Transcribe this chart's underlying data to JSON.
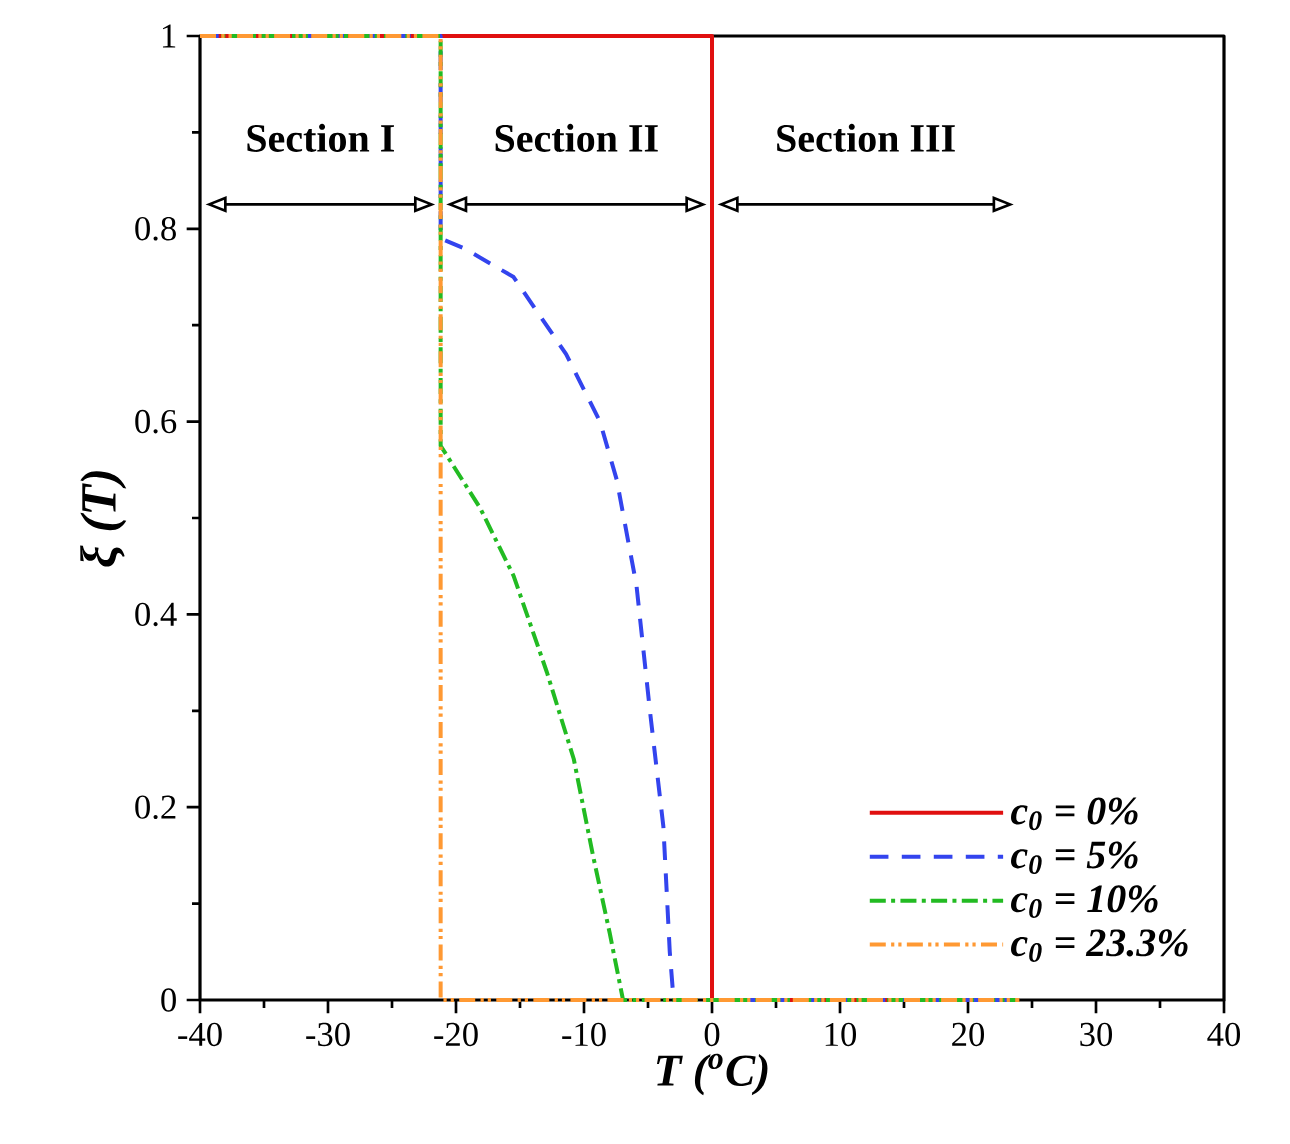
{
  "chart_data": {
    "type": "line",
    "xlabel": "T ($^{o}$C)",
    "ylabel": "ξ (T)",
    "xlim": [
      -40,
      40
    ],
    "ylim": [
      0,
      1
    ],
    "xticks": [
      -40,
      -30,
      -20,
      -10,
      0,
      10,
      20,
      30,
      40
    ],
    "yticks": [
      0,
      0.2,
      0.4,
      0.6,
      0.8,
      1
    ],
    "legend": "bottom right",
    "grid": false,
    "marker": "none",
    "series": [
      {
        "name": "c$_{0}$ = 0%",
        "color": "#e01010",
        "line_style": "solid",
        "x": [
          -40,
          0,
          0,
          24
        ],
        "values": [
          1,
          1,
          0,
          0
        ]
      },
      {
        "name": "c$_{0}$ = 5%",
        "color": "#3344ee",
        "line_style": "dashed",
        "x": [
          -40,
          -21.2,
          -21.2,
          -19.4,
          -15.5,
          -11.4,
          -8.75,
          -7.45,
          -5.9,
          -4.85,
          -3.8,
          -3.3,
          -3.0,
          24
        ],
        "values": [
          1,
          1,
          0.79,
          0.78,
          0.75,
          0.67,
          0.6,
          0.54,
          0.43,
          0.3,
          0.18,
          0.05,
          0,
          0
        ]
      },
      {
        "name": "c$_{0}$ = 10%",
        "color": "#22bb22",
        "line_style": "dashdot",
        "x": [
          -40,
          -21.2,
          -21.2,
          -18.1,
          -15.5,
          -12.9,
          -10.8,
          -9.3,
          -8.0,
          -6.95,
          24
        ],
        "values": [
          1,
          1,
          0.575,
          0.51,
          0.44,
          0.34,
          0.25,
          0.15,
          0.07,
          0,
          0
        ]
      },
      {
        "name": "c$_{0}$ = 23.3%",
        "color": "#ff9933",
        "line_style": "dashdotdot",
        "x": [
          -40,
          -21.2,
          -21.2,
          24
        ],
        "values": [
          1,
          1,
          0,
          0
        ]
      }
    ],
    "annotations": [
      "Section I",
      "Section II",
      "Section III"
    ]
  }
}
